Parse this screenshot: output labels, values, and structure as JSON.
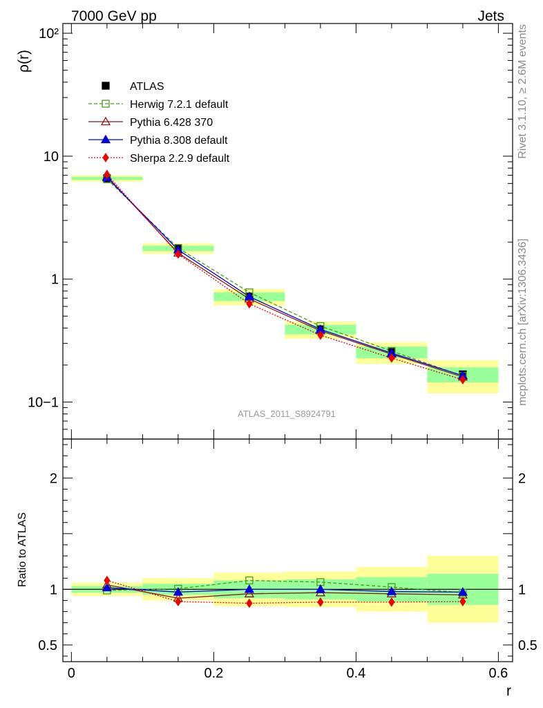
{
  "header": {
    "left": "7000 GeV pp",
    "right": "Jets"
  },
  "side_text": {
    "rivet": "Rivet 3.1.10, ≥ 2.6M events",
    "mcplots": "mcplots.cern.ch [arXiv:1306.3436]"
  },
  "analysis_label": "ATLAS_2011_S8924791",
  "chart_data": [
    {
      "type": "line",
      "ylabel": "ρ(r)",
      "yscale": "log",
      "ylim": [
        0.05,
        120
      ],
      "xlim": [
        -0.012,
        0.62
      ],
      "yticklabels": [
        "10−1",
        "1",
        "10",
        "10²"
      ],
      "legend_position": "top-left",
      "x": [
        0.05,
        0.15,
        0.25,
        0.35,
        0.45,
        0.55
      ],
      "series": [
        {
          "name": "ATLAS",
          "color": "#000000",
          "marker": "filled-square",
          "line": "none",
          "values": [
            6.6,
            1.78,
            0.72,
            0.39,
            0.255,
            0.168
          ],
          "band_total": [
            0.06,
            0.1,
            0.15,
            0.16,
            0.2,
            0.3
          ],
          "band_stat": [
            0.03,
            0.05,
            0.08,
            0.09,
            0.11,
            0.14
          ]
        },
        {
          "name": "Herwig 7.2.1 default",
          "color": "#4a9a1e",
          "marker": "open-square",
          "line": "dashed",
          "values": [
            6.5,
            1.79,
            0.78,
            0.415,
            0.26,
            0.163
          ]
        },
        {
          "name": "Pythia 6.428 370",
          "color": "#8b1a1a",
          "marker": "open-triangle",
          "line": "solid",
          "values": [
            6.85,
            1.63,
            0.69,
            0.38,
            0.245,
            0.16
          ]
        },
        {
          "name": "Pythia 8.308 default",
          "color": "#0000e0",
          "marker": "filled-triangle",
          "line": "solid",
          "values": [
            6.7,
            1.73,
            0.72,
            0.39,
            0.25,
            0.164
          ]
        },
        {
          "name": "Sherpa 2.2.9 default",
          "color": "#ee0000",
          "marker": "filled-diamond",
          "line": "dotted",
          "values": [
            7.1,
            1.6,
            0.63,
            0.35,
            0.228,
            0.152
          ]
        }
      ]
    },
    {
      "type": "line",
      "ylabel": "Ratio to ATLAS",
      "xlabel": "r",
      "ylim": [
        0.35,
        2.35
      ],
      "xlim": [
        -0.012,
        0.62
      ],
      "yticklabels": [
        "0.5",
        "1",
        "2"
      ],
      "xticklabels": [
        "0",
        "0.2",
        "0.4",
        "0.6"
      ],
      "x": [
        0.05,
        0.15,
        0.25,
        0.35,
        0.45,
        0.55
      ],
      "series": [
        {
          "name": "Herwig 7.2.1 default",
          "values": [
            0.99,
            1.005,
            1.08,
            1.065,
            1.02,
            0.97
          ]
        },
        {
          "name": "Pythia 6.428 370",
          "values": [
            1.04,
            0.92,
            0.96,
            0.97,
            0.96,
            0.95
          ]
        },
        {
          "name": "Pythia 8.308 default",
          "values": [
            1.015,
            0.975,
            1.0,
            1.0,
            0.98,
            0.975
          ]
        },
        {
          "name": "Sherpa 2.2.9 default",
          "values": [
            1.08,
            0.89,
            0.875,
            0.885,
            0.885,
            0.89
          ]
        }
      ]
    }
  ]
}
